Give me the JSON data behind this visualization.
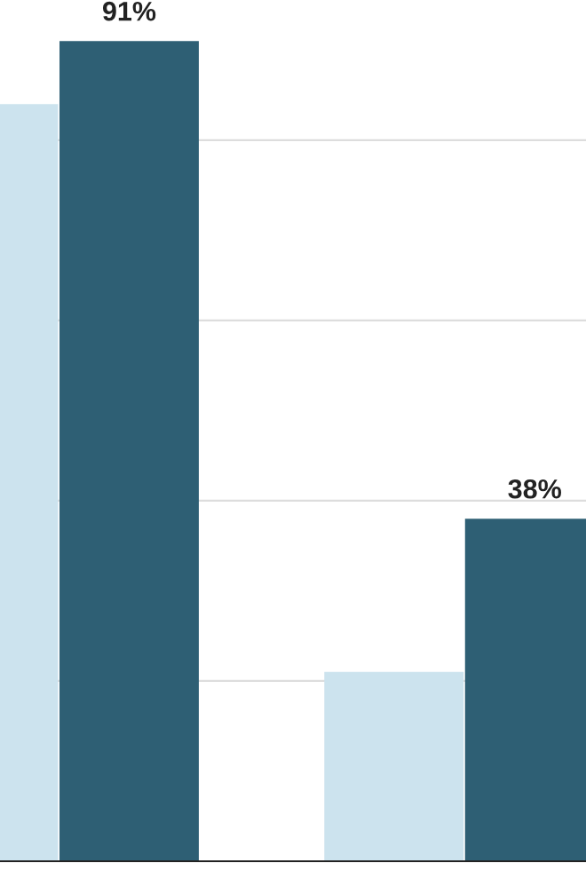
{
  "chart_data": {
    "type": "bar",
    "categories": [
      null,
      null
    ],
    "series": [
      {
        "color": "#cce3ee",
        "values": [
          84,
          21
        ]
      },
      {
        "color": "#2e5f74",
        "values": [
          91,
          38
        ],
        "value_labels": [
          "91%",
          "38%"
        ]
      }
    ],
    "yticks": [
      {
        "value": 20,
        "label": null
      },
      {
        "value": 40,
        "label": null
      },
      {
        "value": 60,
        "label": null
      },
      {
        "value": 80,
        "label": null
      }
    ],
    "grid": "y",
    "tick_labels": false
  }
}
